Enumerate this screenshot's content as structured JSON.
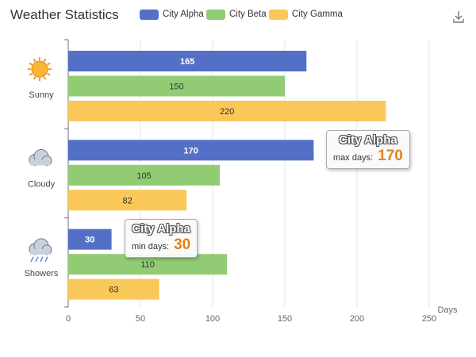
{
  "chart_data": {
    "type": "bar",
    "orientation": "horizontal",
    "title": "Weather Statistics",
    "xlabel": "Days",
    "ylabel": "",
    "xlim": [
      0,
      250
    ],
    "x_ticks": [
      "0",
      "50",
      "100",
      "150",
      "200",
      "250"
    ],
    "categories": [
      "Sunny",
      "Cloudy",
      "Showers"
    ],
    "category_icons": [
      "sun-icon",
      "cloud-icon",
      "rain-cloud-icon"
    ],
    "series": [
      {
        "name": "City Alpha",
        "color": "#5470c6",
        "values": [
          165,
          170,
          30
        ]
      },
      {
        "name": "City Beta",
        "color": "#91cc75",
        "values": [
          150,
          105,
          110
        ]
      },
      {
        "name": "City Gamma",
        "color": "#fac858",
        "values": [
          220,
          82,
          63
        ]
      }
    ],
    "grid": true,
    "legend_position": "top"
  },
  "tooltips": [
    {
      "title": "City Alpha",
      "label": "max days:",
      "value": "170"
    },
    {
      "title": "City Alpha",
      "label": "min days:",
      "value": "30"
    }
  ],
  "toolbar": {
    "download_icon": "download-icon"
  }
}
